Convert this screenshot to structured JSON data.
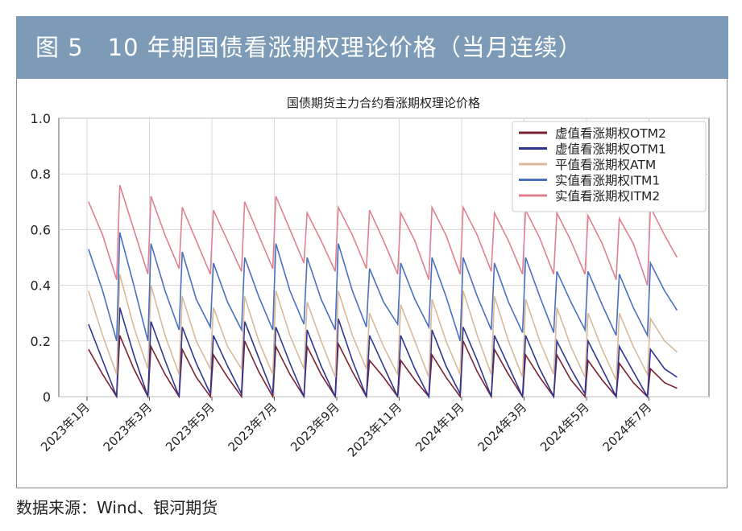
{
  "header": {
    "title": "图 5　10 年期国债看涨期权理论价格（当月连续）"
  },
  "source": "数据来源：Wind、银河期货",
  "chart_data": {
    "type": "line",
    "title": "国债期货主力合约看涨期权理论价格",
    "xlabel": "",
    "ylabel": "",
    "ylim": [
      0,
      1.0
    ],
    "yticks": [
      0,
      0.2,
      0.4,
      0.6,
      0.8,
      1.0
    ],
    "ytick_labels": [
      "0",
      "0.2",
      "0.4",
      "0.6",
      "0.8",
      "1.0"
    ],
    "x_unit": "months since 2023-01",
    "xlim": [
      -1,
      20.3
    ],
    "xticks": [
      0,
      2,
      4,
      6,
      8,
      10,
      12,
      14,
      16,
      18
    ],
    "xtick_labels": [
      "2023年1月",
      "2023年3月",
      "2023年5月",
      "2023年7月",
      "2023年9月",
      "2023年11月",
      "2024年1月",
      "2024年3月",
      "2024年5月",
      "2024年7月"
    ],
    "grid": true,
    "legend_position": "top-right",
    "x": [
      0.05,
      0.5,
      0.95,
      1.05,
      1.5,
      1.95,
      2.05,
      2.5,
      2.95,
      3.05,
      3.5,
      3.95,
      4.05,
      4.5,
      4.95,
      5.05,
      5.5,
      5.95,
      6.05,
      6.5,
      6.95,
      7.05,
      7.5,
      7.95,
      8.05,
      8.5,
      8.95,
      9.05,
      9.5,
      9.95,
      10.05,
      10.5,
      10.95,
      11.05,
      11.5,
      11.95,
      12.05,
      12.5,
      12.95,
      13.05,
      13.5,
      13.95,
      14.05,
      14.5,
      14.95,
      15.05,
      15.5,
      15.95,
      16.05,
      16.5,
      16.95,
      17.05,
      17.5,
      17.95,
      18.05,
      18.5,
      18.9
    ],
    "series": [
      {
        "name": "虚值看涨期权OTM2",
        "color": "#7a2232",
        "values": [
          0.17,
          0.08,
          0,
          0.22,
          0.1,
          0,
          0.18,
          0.08,
          0,
          0.17,
          0.07,
          0,
          0.15,
          0.07,
          0,
          0.2,
          0.09,
          0,
          0.18,
          0.08,
          0,
          0.18,
          0.08,
          0,
          0.19,
          0.09,
          0,
          0.13,
          0.07,
          0,
          0.13,
          0.06,
          0,
          0.15,
          0.07,
          0,
          0.2,
          0.09,
          0,
          0.17,
          0.08,
          0,
          0.15,
          0.07,
          0,
          0.15,
          0.06,
          0,
          0.13,
          0.06,
          0,
          0.12,
          0.05,
          0,
          0.1,
          0.05,
          0.03
        ]
      },
      {
        "name": "虚值看涨期权OTM1",
        "color": "#2e3590",
        "values": [
          0.26,
          0.13,
          0,
          0.32,
          0.15,
          0,
          0.27,
          0.13,
          0,
          0.25,
          0.12,
          0.01,
          0.22,
          0.11,
          0.01,
          0.27,
          0.14,
          0.01,
          0.25,
          0.12,
          0,
          0.24,
          0.11,
          0,
          0.28,
          0.13,
          0,
          0.22,
          0.11,
          0,
          0.22,
          0.1,
          0,
          0.24,
          0.11,
          0.01,
          0.25,
          0.13,
          0,
          0.22,
          0.11,
          0,
          0.22,
          0.1,
          0,
          0.2,
          0.1,
          0.01,
          0.2,
          0.1,
          0,
          0.18,
          0.09,
          0,
          0.17,
          0.1,
          0.07
        ]
      },
      {
        "name": "平值看涨期权ATM",
        "color": "#d9b99a",
        "values": [
          0.38,
          0.22,
          0.08,
          0.44,
          0.25,
          0.1,
          0.4,
          0.22,
          0.08,
          0.36,
          0.2,
          0.1,
          0.32,
          0.18,
          0.1,
          0.36,
          0.2,
          0.08,
          0.38,
          0.22,
          0.1,
          0.34,
          0.2,
          0.07,
          0.38,
          0.22,
          0.1,
          0.3,
          0.18,
          0.08,
          0.33,
          0.2,
          0.07,
          0.35,
          0.2,
          0.08,
          0.38,
          0.22,
          0.08,
          0.36,
          0.2,
          0.07,
          0.35,
          0.2,
          0.08,
          0.32,
          0.18,
          0.07,
          0.3,
          0.17,
          0.06,
          0.3,
          0.18,
          0.08,
          0.28,
          0.2,
          0.16
        ]
      },
      {
        "name": "实值看涨期权ITM1",
        "color": "#4a6fbf",
        "values": [
          0.53,
          0.38,
          0.2,
          0.59,
          0.4,
          0.2,
          0.55,
          0.38,
          0.24,
          0.52,
          0.35,
          0.25,
          0.48,
          0.34,
          0.24,
          0.5,
          0.36,
          0.24,
          0.55,
          0.38,
          0.26,
          0.5,
          0.35,
          0.24,
          0.55,
          0.38,
          0.25,
          0.46,
          0.34,
          0.26,
          0.48,
          0.35,
          0.25,
          0.5,
          0.36,
          0.2,
          0.5,
          0.36,
          0.24,
          0.48,
          0.34,
          0.23,
          0.5,
          0.36,
          0.23,
          0.45,
          0.34,
          0.24,
          0.45,
          0.33,
          0.22,
          0.44,
          0.32,
          0.22,
          0.48,
          0.38,
          0.31
        ]
      },
      {
        "name": "实值看涨期权ITM2",
        "color": "#e0808f",
        "values": [
          0.7,
          0.58,
          0.42,
          0.76,
          0.6,
          0.44,
          0.72,
          0.58,
          0.46,
          0.68,
          0.56,
          0.44,
          0.67,
          0.56,
          0.45,
          0.7,
          0.58,
          0.46,
          0.72,
          0.6,
          0.48,
          0.66,
          0.56,
          0.45,
          0.68,
          0.58,
          0.46,
          0.67,
          0.56,
          0.44,
          0.66,
          0.56,
          0.42,
          0.68,
          0.58,
          0.44,
          0.68,
          0.58,
          0.45,
          0.66,
          0.56,
          0.44,
          0.67,
          0.57,
          0.44,
          0.66,
          0.56,
          0.44,
          0.65,
          0.55,
          0.42,
          0.64,
          0.55,
          0.4,
          0.68,
          0.58,
          0.5
        ]
      }
    ]
  }
}
